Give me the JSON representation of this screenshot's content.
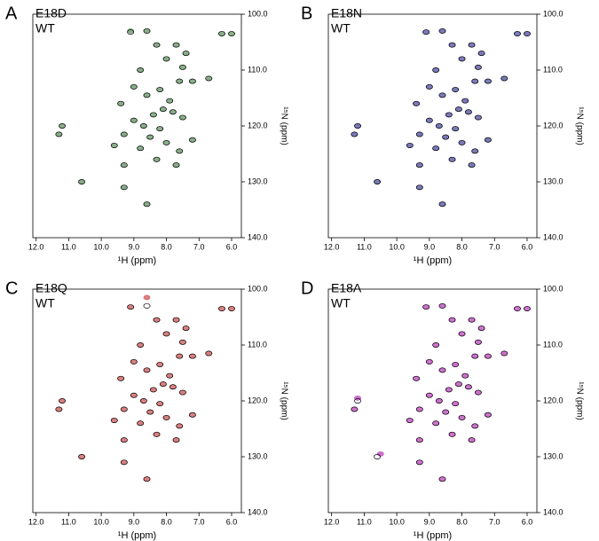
{
  "chart_data": [
    {
      "type": "scatter",
      "panel_label": "A",
      "xlabel": "¹H (ppm)",
      "ylabel": "¹⁵N (ppm)",
      "xlim": [
        12.1,
        5.7
      ],
      "ylim": [
        100,
        140
      ],
      "xticks": [
        {
          "value": 12,
          "label": "12.0"
        },
        {
          "value": 11,
          "label": "11.0"
        },
        {
          "value": 10,
          "label": "10.0"
        },
        {
          "value": 9,
          "label": "9.0"
        },
        {
          "value": 8,
          "label": "8.0"
        },
        {
          "value": 7,
          "label": "7.0"
        },
        {
          "value": 6,
          "label": "6.0"
        }
      ],
      "yticks": [
        {
          "value": 100,
          "label": "100.0"
        },
        {
          "value": 110,
          "label": "110.0"
        },
        {
          "value": 120,
          "label": "120.0"
        },
        {
          "value": 130,
          "label": "130.0"
        },
        {
          "value": 140,
          "label": "140.0"
        }
      ],
      "series": [
        {
          "name": "E18D",
          "color": "#2db52d",
          "mark_color": "#6d9a6d",
          "x": [
            9.1,
            8.6,
            6.3,
            6.0,
            8.3,
            7.7,
            7.4,
            8.0,
            7.5,
            8.8,
            7.6,
            6.7,
            7.2,
            9.0,
            8.2,
            8.6,
            7.9,
            9.4,
            8.1,
            7.8,
            8.4,
            7.5,
            9.0,
            8.7,
            8.2,
            11.2,
            11.3,
            9.3,
            8.5,
            7.2,
            8.0,
            9.6,
            8.8,
            7.6,
            8.3,
            9.3,
            7.7,
            10.6,
            9.3,
            8.6
          ],
          "values": [
            103.0,
            103.0,
            103.5,
            103.5,
            105.5,
            105.5,
            107.0,
            108.0,
            109.5,
            110.0,
            112.0,
            111.5,
            112.0,
            113.0,
            113.5,
            114.5,
            115.5,
            116.0,
            117.0,
            117.5,
            118.0,
            118.5,
            119.0,
            120.0,
            120.5,
            120.0,
            121.5,
            121.5,
            122.0,
            122.5,
            123.0,
            123.5,
            124.0,
            124.5,
            126.0,
            127.0,
            127.0,
            130.0,
            131.0,
            134.0
          ]
        },
        {
          "name": "WT",
          "color": "#000000",
          "x": [
            9.1,
            8.6,
            6.3,
            6.0,
            8.3,
            7.7,
            7.4,
            8.0,
            7.5,
            8.8,
            7.6,
            6.7,
            7.2,
            9.0,
            8.2,
            8.6,
            7.9,
            9.4,
            8.1,
            7.8,
            8.4,
            7.5,
            9.0,
            8.7,
            8.2,
            11.2,
            11.3,
            9.3,
            8.5,
            7.2,
            8.0,
            9.6,
            8.8,
            7.6,
            8.3,
            9.3,
            7.7,
            10.6,
            9.3,
            8.6
          ],
          "values": [
            103.2,
            103.0,
            103.5,
            103.5,
            105.5,
            105.5,
            107.0,
            108.0,
            109.5,
            110.0,
            112.0,
            111.5,
            112.0,
            113.0,
            113.5,
            114.5,
            115.5,
            116.0,
            117.0,
            117.5,
            118.0,
            118.5,
            119.0,
            120.0,
            120.5,
            120.0,
            121.5,
            121.5,
            122.0,
            122.5,
            123.0,
            123.5,
            124.0,
            124.5,
            126.0,
            127.0,
            127.0,
            130.0,
            131.0,
            134.0
          ]
        }
      ]
    },
    {
      "type": "scatter",
      "panel_label": "B",
      "xlabel": "¹H (ppm)",
      "ylabel": "¹⁵N (ppm)",
      "xlim": [
        12.1,
        5.7
      ],
      "ylim": [
        100,
        140
      ],
      "xticks": [
        {
          "value": 12,
          "label": "12.0"
        },
        {
          "value": 11,
          "label": "11.0"
        },
        {
          "value": 10,
          "label": "10.0"
        },
        {
          "value": 9,
          "label": "9.0"
        },
        {
          "value": 8,
          "label": "8.0"
        },
        {
          "value": 7,
          "label": "7.0"
        },
        {
          "value": 6,
          "label": "6.0"
        }
      ],
      "yticks": [
        {
          "value": 100,
          "label": "100.0"
        },
        {
          "value": 110,
          "label": "110.0"
        },
        {
          "value": 120,
          "label": "120.0"
        },
        {
          "value": 130,
          "label": "130.0"
        },
        {
          "value": 140,
          "label": "140.0"
        }
      ],
      "series": [
        {
          "name": "E18N",
          "color": "#2b2ba0",
          "mark_color": "#5a5aa8",
          "x": [
            9.1,
            8.6,
            6.3,
            6.0,
            8.3,
            7.7,
            7.4,
            8.0,
            7.5,
            8.8,
            7.6,
            6.7,
            7.2,
            9.0,
            8.2,
            8.6,
            7.9,
            9.4,
            8.1,
            7.8,
            8.4,
            7.5,
            9.0,
            8.7,
            8.2,
            11.2,
            11.3,
            9.3,
            8.5,
            7.2,
            8.0,
            9.6,
            8.8,
            7.6,
            8.3,
            9.3,
            7.7,
            10.6,
            9.3,
            8.6
          ],
          "values": [
            103.2,
            103.0,
            103.5,
            103.5,
            105.5,
            105.5,
            107.0,
            108.0,
            109.5,
            110.0,
            112.0,
            111.5,
            112.0,
            113.0,
            113.5,
            114.5,
            115.5,
            116.0,
            117.0,
            117.5,
            118.0,
            118.5,
            119.0,
            120.0,
            120.5,
            120.0,
            121.5,
            121.5,
            122.0,
            122.5,
            123.0,
            123.5,
            124.0,
            124.5,
            126.0,
            127.0,
            127.0,
            130.0,
            131.0,
            134.0
          ]
        },
        {
          "name": "WT",
          "color": "#000000",
          "x": [
            9.1,
            8.6,
            6.3,
            6.0,
            8.3,
            7.7,
            7.4,
            8.0,
            7.5,
            8.8,
            7.6,
            6.7,
            7.2,
            9.0,
            8.2,
            8.6,
            7.9,
            9.4,
            8.1,
            7.8,
            8.4,
            7.5,
            9.0,
            8.7,
            8.2,
            11.2,
            11.3,
            9.3,
            8.5,
            7.2,
            8.0,
            9.6,
            8.8,
            7.6,
            8.3,
            9.3,
            7.7,
            10.6,
            9.3,
            8.6
          ],
          "values": [
            103.2,
            103.0,
            103.5,
            103.5,
            105.5,
            105.5,
            107.0,
            108.0,
            109.5,
            110.0,
            112.0,
            111.5,
            112.0,
            113.0,
            113.5,
            114.5,
            115.5,
            116.0,
            117.0,
            117.5,
            118.0,
            118.5,
            119.0,
            120.0,
            120.5,
            120.0,
            121.5,
            121.5,
            122.0,
            122.5,
            123.0,
            123.5,
            124.0,
            124.5,
            126.0,
            127.0,
            127.0,
            130.0,
            131.0,
            134.0
          ]
        }
      ]
    },
    {
      "type": "scatter",
      "panel_label": "C",
      "xlabel": "¹H (ppm)",
      "ylabel": "¹⁵N (ppm)",
      "xlim": [
        12.1,
        5.7
      ],
      "ylim": [
        100,
        140
      ],
      "xticks": [
        {
          "value": 12,
          "label": "12.0"
        },
        {
          "value": 11,
          "label": "11.0"
        },
        {
          "value": 10,
          "label": "10.0"
        },
        {
          "value": 9,
          "label": "9.0"
        },
        {
          "value": 8,
          "label": "8.0"
        },
        {
          "value": 7,
          "label": "7.0"
        },
        {
          "value": 6,
          "label": "6.0"
        }
      ],
      "yticks": [
        {
          "value": 100,
          "label": "100.0"
        },
        {
          "value": 110,
          "label": "110.0"
        },
        {
          "value": 120,
          "label": "120.0"
        },
        {
          "value": 130,
          "label": "130.0"
        },
        {
          "value": 140,
          "label": "140.0"
        }
      ],
      "series": [
        {
          "name": "E18Q",
          "color": "#e01b1b",
          "mark_color": "#d06060",
          "x": [
            9.1,
            8.6,
            6.3,
            6.0,
            8.3,
            7.7,
            7.4,
            8.0,
            7.5,
            8.8,
            7.6,
            6.7,
            7.2,
            9.0,
            8.2,
            8.6,
            7.9,
            9.4,
            8.1,
            7.8,
            8.4,
            7.5,
            9.0,
            8.7,
            8.2,
            11.2,
            11.3,
            9.3,
            8.5,
            7.2,
            8.0,
            9.6,
            8.8,
            7.6,
            8.3,
            9.3,
            7.7,
            10.6,
            9.3,
            8.6
          ],
          "values": [
            103.2,
            101.5,
            103.5,
            103.5,
            105.5,
            105.5,
            107.0,
            108.0,
            109.5,
            110.0,
            112.0,
            111.5,
            112.0,
            113.0,
            113.5,
            114.5,
            115.5,
            116.0,
            117.0,
            117.5,
            118.0,
            118.5,
            119.0,
            120.0,
            120.5,
            120.0,
            121.5,
            121.5,
            122.0,
            122.5,
            123.0,
            123.5,
            124.0,
            124.5,
            126.0,
            127.0,
            127.0,
            130.0,
            131.0,
            134.0
          ]
        },
        {
          "name": "WT",
          "color": "#000000",
          "x": [
            9.1,
            8.6,
            6.3,
            6.0,
            8.3,
            7.7,
            7.4,
            8.0,
            7.5,
            8.8,
            7.6,
            6.7,
            7.2,
            9.0,
            8.2,
            8.6,
            7.9,
            9.4,
            8.1,
            7.8,
            8.4,
            7.5,
            9.0,
            8.7,
            8.2,
            11.2,
            11.3,
            9.3,
            8.5,
            7.2,
            8.0,
            9.6,
            8.8,
            7.6,
            8.3,
            9.3,
            7.7,
            10.6,
            9.3,
            8.6
          ],
          "values": [
            103.2,
            103.0,
            103.5,
            103.5,
            105.5,
            105.5,
            107.0,
            108.0,
            109.5,
            110.0,
            112.0,
            111.5,
            112.0,
            113.0,
            113.5,
            114.5,
            115.5,
            116.0,
            117.0,
            117.5,
            118.0,
            118.5,
            119.0,
            120.0,
            120.5,
            120.0,
            121.5,
            121.5,
            122.0,
            122.5,
            123.0,
            123.5,
            124.0,
            124.5,
            126.0,
            127.0,
            127.0,
            130.0,
            131.0,
            134.0
          ]
        }
      ]
    },
    {
      "type": "scatter",
      "panel_label": "D",
      "xlabel": "¹H (ppm)",
      "ylabel": "¹⁵N (ppm)",
      "xlim": [
        12.1,
        5.7
      ],
      "ylim": [
        100,
        140
      ],
      "xticks": [
        {
          "value": 12,
          "label": "12.0"
        },
        {
          "value": 11,
          "label": "11.0"
        },
        {
          "value": 10,
          "label": "10.0"
        },
        {
          "value": 9,
          "label": "9.0"
        },
        {
          "value": 8,
          "label": "8.0"
        },
        {
          "value": 7,
          "label": "7.0"
        },
        {
          "value": 6,
          "label": "6.0"
        }
      ],
      "yticks": [
        {
          "value": 100,
          "label": "100.0"
        },
        {
          "value": 110,
          "label": "110.0"
        },
        {
          "value": 120,
          "label": "120.0"
        },
        {
          "value": 130,
          "label": "130.0"
        },
        {
          "value": 140,
          "label": "140.0"
        }
      ],
      "series": [
        {
          "name": "E18A",
          "color": "#d81fd0",
          "mark_color": "#c050c0",
          "x": [
            9.1,
            8.6,
            6.3,
            6.0,
            8.3,
            7.7,
            7.4,
            8.0,
            7.5,
            8.8,
            7.6,
            6.7,
            7.2,
            9.0,
            8.2,
            8.6,
            7.9,
            9.4,
            8.1,
            7.8,
            8.4,
            7.5,
            9.0,
            8.7,
            8.2,
            11.2,
            11.3,
            9.3,
            8.5,
            7.2,
            8.0,
            9.6,
            8.8,
            7.6,
            8.3,
            9.3,
            7.7,
            10.5,
            9.3,
            8.6
          ],
          "values": [
            103.2,
            103.0,
            103.5,
            103.5,
            105.5,
            105.5,
            107.0,
            108.0,
            109.5,
            110.0,
            112.0,
            111.5,
            112.0,
            113.0,
            113.5,
            114.5,
            115.5,
            116.0,
            117.0,
            117.5,
            118.0,
            118.5,
            119.0,
            120.0,
            120.5,
            119.5,
            121.5,
            121.5,
            122.0,
            122.5,
            123.0,
            123.5,
            124.0,
            124.5,
            126.0,
            127.0,
            127.0,
            129.5,
            131.0,
            134.0
          ]
        },
        {
          "name": "WT",
          "color": "#000000",
          "x": [
            9.1,
            8.6,
            6.3,
            6.0,
            8.3,
            7.7,
            7.4,
            8.0,
            7.5,
            8.8,
            7.6,
            6.7,
            7.2,
            9.0,
            8.2,
            8.6,
            7.9,
            9.4,
            8.1,
            7.8,
            8.4,
            7.5,
            9.0,
            8.7,
            8.2,
            11.2,
            11.3,
            9.3,
            8.5,
            7.2,
            8.0,
            9.6,
            8.8,
            7.6,
            8.3,
            9.3,
            7.7,
            10.6,
            9.3,
            8.6
          ],
          "values": [
            103.2,
            103.0,
            103.5,
            103.5,
            105.5,
            105.5,
            107.0,
            108.0,
            109.5,
            110.0,
            112.0,
            111.5,
            112.0,
            113.0,
            113.5,
            114.5,
            115.5,
            116.0,
            117.0,
            117.5,
            118.0,
            118.5,
            119.0,
            120.0,
            120.5,
            120.0,
            121.5,
            121.5,
            122.0,
            122.5,
            123.0,
            123.5,
            124.0,
            124.5,
            126.0,
            127.0,
            127.0,
            130.0,
            131.0,
            134.0
          ]
        }
      ]
    }
  ]
}
